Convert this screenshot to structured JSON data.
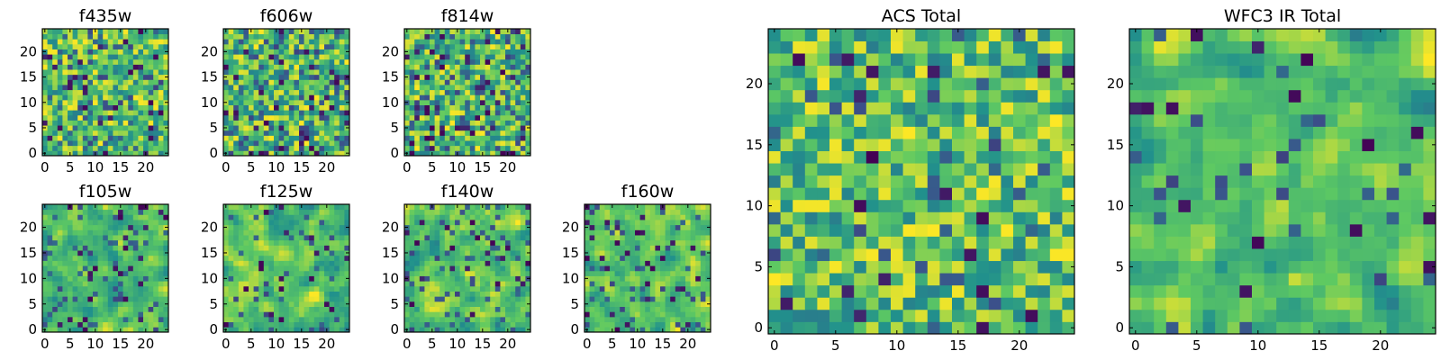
{
  "chart_data": [
    {
      "id": "f435w",
      "type": "heatmap",
      "title": "f435w",
      "rows": 25,
      "cols": 25,
      "xlim": [
        0,
        24
      ],
      "ylim": [
        0,
        24
      ],
      "xticks": [
        0,
        5,
        10,
        15,
        20
      ],
      "yticks": [
        0,
        5,
        10,
        15,
        20
      ],
      "seed": 11,
      "smooth": 0,
      "dark_fraction": 0.05
    },
    {
      "id": "f606w",
      "type": "heatmap",
      "title": "f606w",
      "rows": 25,
      "cols": 25,
      "xlim": [
        0,
        24
      ],
      "ylim": [
        0,
        24
      ],
      "xticks": [
        0,
        5,
        10,
        15,
        20
      ],
      "yticks": [
        0,
        5,
        10,
        15,
        20
      ],
      "seed": 23,
      "smooth": 0,
      "dark_fraction": 0.06
    },
    {
      "id": "f814w",
      "type": "heatmap",
      "title": "f814w",
      "rows": 25,
      "cols": 25,
      "xlim": [
        0,
        24
      ],
      "ylim": [
        0,
        24
      ],
      "xticks": [
        0,
        5,
        10,
        15,
        20
      ],
      "yticks": [
        0,
        5,
        10,
        15,
        20
      ],
      "seed": 37,
      "smooth": 0,
      "dark_fraction": 0.06
    },
    {
      "id": "f105w",
      "type": "heatmap",
      "title": "f105w",
      "rows": 25,
      "cols": 25,
      "xlim": [
        0,
        24
      ],
      "ylim": [
        0,
        24
      ],
      "xticks": [
        0,
        5,
        10,
        15,
        20
      ],
      "yticks": [
        0,
        5,
        10,
        15,
        20
      ],
      "seed": 41,
      "smooth": 1,
      "dark_fraction": 0.04
    },
    {
      "id": "f125w",
      "type": "heatmap",
      "title": "f125w",
      "rows": 25,
      "cols": 25,
      "xlim": [
        0,
        24
      ],
      "ylim": [
        0,
        24
      ],
      "xticks": [
        0,
        5,
        10,
        15,
        20
      ],
      "yticks": [
        0,
        5,
        10,
        15,
        20
      ],
      "seed": 53,
      "smooth": 1,
      "dark_fraction": 0.03
    },
    {
      "id": "f140w",
      "type": "heatmap",
      "title": "f140w",
      "rows": 25,
      "cols": 25,
      "xlim": [
        0,
        24
      ],
      "ylim": [
        0,
        24
      ],
      "xticks": [
        0,
        5,
        10,
        15,
        20
      ],
      "yticks": [
        0,
        5,
        10,
        15,
        20
      ],
      "seed": 67,
      "smooth": 1,
      "dark_fraction": 0.04
    },
    {
      "id": "f160w",
      "type": "heatmap",
      "title": "f160w",
      "rows": 25,
      "cols": 25,
      "xlim": [
        0,
        24
      ],
      "ylim": [
        0,
        24
      ],
      "xticks": [
        0,
        5,
        10,
        15,
        20
      ],
      "yticks": [
        0,
        5,
        10,
        15,
        20
      ],
      "seed": 79,
      "smooth": 1,
      "dark_fraction": 0.04
    },
    {
      "id": "acs_total",
      "type": "heatmap",
      "title": "ACS Total",
      "rows": 25,
      "cols": 25,
      "xlim": [
        0,
        24
      ],
      "ylim": [
        0,
        24
      ],
      "xticks": [
        0,
        5,
        10,
        15,
        20
      ],
      "yticks": [
        0,
        5,
        10,
        15,
        20
      ],
      "seed": 97,
      "smooth": 0,
      "dark_fraction": 0.02
    },
    {
      "id": "wfc3_ir_total",
      "type": "heatmap",
      "title": "WFC3 IR Total",
      "rows": 25,
      "cols": 25,
      "xlim": [
        0,
        24
      ],
      "ylim": [
        0,
        24
      ],
      "xticks": [
        0,
        5,
        10,
        15,
        20
      ],
      "yticks": [
        0,
        5,
        10,
        15,
        20
      ],
      "seed": 113,
      "smooth": 1,
      "dark_fraction": 0.02
    }
  ],
  "colormap": [
    "#440154",
    "#3b528b",
    "#21918c",
    "#5ec962",
    "#fde725"
  ]
}
